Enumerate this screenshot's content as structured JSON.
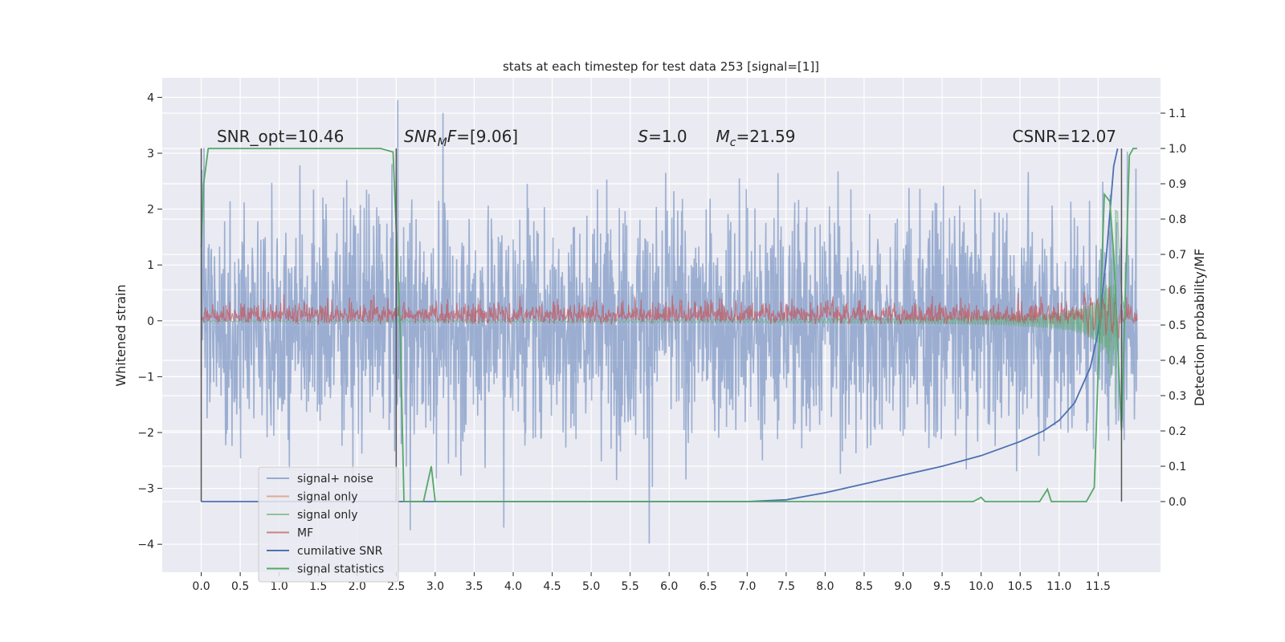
{
  "chart_data": {
    "type": "line",
    "title": "stats at each timestep for test data 253 [signal=[1]]",
    "xlabel": "",
    "ylabel": "Whitened strain",
    "y2label": "Detection probability/MF",
    "xlim": [
      -0.5,
      12.3
    ],
    "ylim": [
      -4.5,
      4.35
    ],
    "y2lim": [
      -0.2,
      1.2
    ],
    "grid": true,
    "background": "#eaeaf2",
    "x_ticks": [
      0.0,
      0.5,
      1.0,
      1.5,
      2.0,
      2.5,
      3.0,
      3.5,
      4.0,
      4.5,
      5.0,
      5.5,
      6.0,
      6.5,
      7.0,
      7.5,
      8.0,
      8.5,
      9.0,
      9.5,
      10.0,
      10.5,
      11.0,
      11.5
    ],
    "x_tick_labels": [
      "0.0",
      "0.5",
      "1.0",
      "1.5",
      "2.0",
      "2.5",
      "3.0",
      "3.5",
      "4.0",
      "4.5",
      "5.0",
      "5.5",
      "6.0",
      "6.5",
      "7.0",
      "7.5",
      "8.0",
      "8.5",
      "9.0",
      "9.5",
      "10.0",
      "10.5",
      "11.0",
      "11.5"
    ],
    "y_ticks": [
      4,
      3,
      2,
      1,
      0,
      -1,
      -2,
      -3,
      -4
    ],
    "y_tick_labels": [
      "4",
      "3",
      "2",
      "1",
      "0",
      "−1",
      "−2",
      "−3",
      "−4"
    ],
    "y2_ticks": [
      1.1,
      1.0,
      0.9,
      0.8,
      0.7,
      0.6,
      0.5,
      0.4,
      0.3,
      0.2,
      0.1,
      0.0
    ],
    "y2_tick_labels": [
      "1.1",
      "1.0",
      "0.9",
      "0.8",
      "0.7",
      "0.6",
      "0.5",
      "0.4",
      "0.3",
      "0.2",
      "0.1",
      "0.0"
    ],
    "annotations": [
      {
        "text": "SNR_opt=10.46",
        "x": 0.2,
        "y": 3.2
      },
      {
        "text": "SNR_MF=[9.06]",
        "x": 2.6,
        "y": 3.2,
        "math": "MF"
      },
      {
        "text": "S=1.0",
        "x": 5.6,
        "y": 3.2,
        "math": "S"
      },
      {
        "text": "M_c=21.59",
        "x": 6.6,
        "y": 3.2,
        "math": "Mc"
      },
      {
        "text": "CSNR=12.07",
        "x": 10.4,
        "y": 3.2
      }
    ],
    "legend": {
      "position": "lower-left",
      "entries": [
        {
          "label": "signal+ noise",
          "color": "#97a9d2"
        },
        {
          "label": "signal only",
          "color": "#e0a98e"
        },
        {
          "label": "signal only",
          "color": "#8fc497"
        },
        {
          "label": "MF",
          "color": "#c88385"
        },
        {
          "label": "cumilative SNR",
          "color": "#4c72b0"
        },
        {
          "label": "signal statistics",
          "color": "#55a868"
        }
      ]
    },
    "series": [
      {
        "name": "signal+ noise",
        "axis": "left",
        "color": "#4c72b0",
        "style": "noise",
        "x_range": [
          0.0,
          12.0
        ],
        "amplitude_std": 1.0,
        "y_max": 3.95,
        "y_min": -4.07
      },
      {
        "name": "signal only",
        "axis": "left",
        "color": "#55a868",
        "style": "chirp",
        "x_range": [
          0.0,
          12.0
        ],
        "merger_time": 11.75,
        "peak_amplitude": 2.0
      },
      {
        "name": "MF",
        "axis": "right",
        "color": "#c44e52",
        "style": "noise-band",
        "x_range": [
          0.0,
          12.0
        ],
        "baseline": 0.5,
        "band_max": 0.63
      },
      {
        "name": "cumilative SNR",
        "axis": "right",
        "color": "#4c72b0",
        "style": "line",
        "x": [
          0.0,
          6.5,
          7.0,
          7.5,
          8.0,
          8.5,
          9.0,
          9.5,
          10.0,
          10.5,
          10.8,
          11.0,
          11.2,
          11.4,
          11.5,
          11.6,
          11.7,
          11.75
        ],
        "y": [
          0.0,
          0.0,
          0.0,
          0.005,
          0.025,
          0.05,
          0.075,
          0.1,
          0.13,
          0.17,
          0.2,
          0.23,
          0.28,
          0.38,
          0.48,
          0.68,
          0.95,
          1.0
        ]
      },
      {
        "name": "signal statistics",
        "axis": "right",
        "color": "#55a868",
        "style": "line",
        "x": [
          0.0,
          0.03,
          0.09,
          0.3,
          2.3,
          2.46,
          2.55,
          2.6,
          2.85,
          2.95,
          3.0,
          9.9,
          10.0,
          10.05,
          10.1,
          10.3,
          10.75,
          10.85,
          10.9,
          10.95,
          11.35,
          11.45,
          11.52,
          11.58,
          11.65,
          11.7,
          11.75,
          11.8,
          11.85,
          11.9,
          11.95,
          12.0
        ],
        "y": [
          0.72,
          0.9,
          1.0,
          1.0,
          1.0,
          0.99,
          0.5,
          0.0,
          0.0,
          0.1,
          0.0,
          0.0,
          0.012,
          0.0,
          0.0,
          0.0,
          0.0,
          0.035,
          0.0,
          0.0,
          0.0,
          0.04,
          0.5,
          0.87,
          0.85,
          0.7,
          0.45,
          0.2,
          0.6,
          0.98,
          1.0,
          1.0
        ]
      }
    ],
    "vertical_lines": [
      0.0,
      2.5,
      11.8
    ]
  }
}
